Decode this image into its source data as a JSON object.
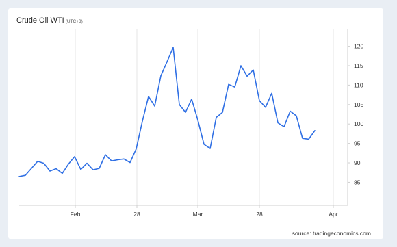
{
  "chart_data": {
    "type": "line",
    "title": "Crude Oil WTI",
    "subtitle": "(UTC+3)",
    "source": "source: tradingeconomics.com",
    "xlabel": "",
    "ylabel": "",
    "y_ticks": [
      85,
      90,
      95,
      100,
      105,
      110,
      115,
      120
    ],
    "ylim": [
      80.5,
      124.5
    ],
    "x_tick_labels": [
      "Feb",
      "28",
      "Mar",
      "28",
      "Apr"
    ],
    "grid": "vertical",
    "series": [
      {
        "color": "#2f6fe4",
        "values": [
          86.5,
          86.8,
          88.6,
          90.4,
          89.9,
          87.9,
          88.5,
          87.3,
          89.7,
          91.6,
          88.3,
          89.9,
          88.2,
          88.6,
          92.1,
          90.5,
          90.8,
          91.0,
          90.1,
          93.6,
          100.7,
          107.1,
          104.6,
          112.4,
          116.0,
          119.7,
          105.0,
          103.0,
          106.4,
          101.0,
          94.8,
          93.7,
          101.7,
          103.0,
          110.2,
          109.5,
          115.0,
          112.3,
          113.9,
          106.0,
          104.3,
          107.9,
          100.3,
          99.3,
          103.3,
          102.1,
          96.3,
          96.1,
          98.3
        ]
      }
    ]
  }
}
